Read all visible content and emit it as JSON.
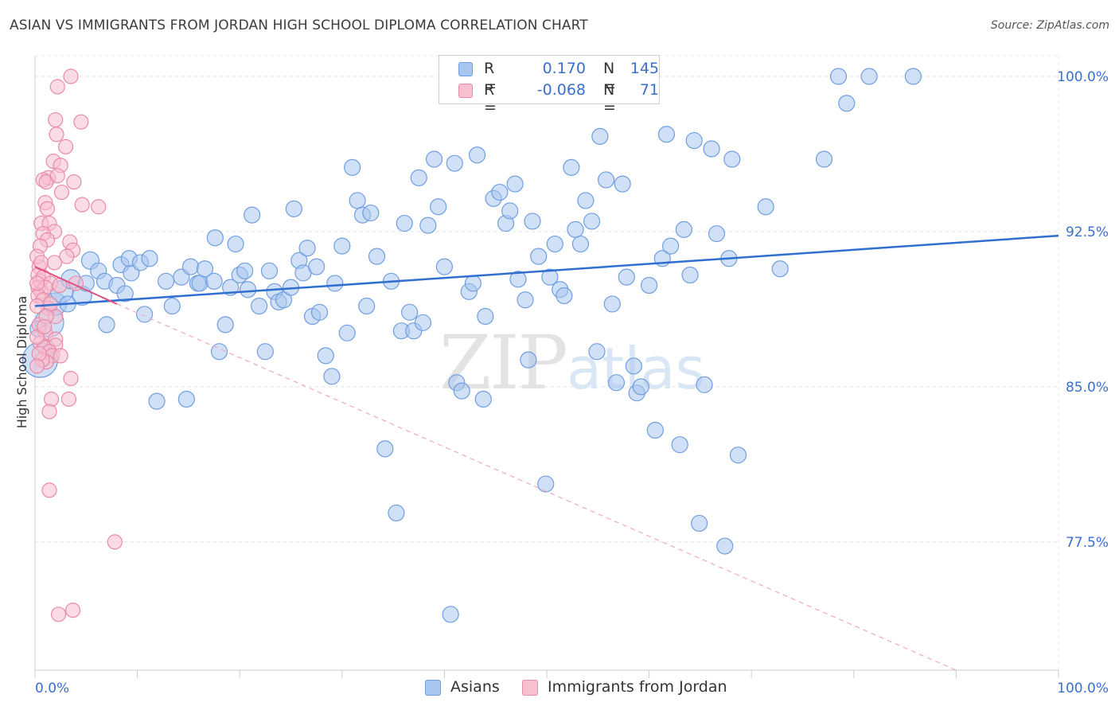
{
  "title": "ASIAN VS IMMIGRANTS FROM JORDAN HIGH SCHOOL DIPLOMA CORRELATION CHART",
  "source": "Source: ZipAtlas.com",
  "watermark": {
    "zip": "ZIP",
    "atlas": "atlas"
  },
  "legend": {
    "r_label": "R =",
    "n_label": "N =",
    "rows": [
      {
        "r": "0.170",
        "n": "145",
        "color": "#a9c6f0",
        "border": "#6f9ee0"
      },
      {
        "r": "-0.068",
        "n": "71",
        "color": "#f7c0d0",
        "border": "#e98aa8"
      }
    ]
  },
  "bottom_legend": [
    "Asians",
    "Immigrants from Jordan"
  ],
  "chart_data": {
    "type": "scatter",
    "title": "ASIAN VS IMMIGRANTS FROM JORDAN HIGH SCHOOL DIPLOMA CORRELATION CHART",
    "xlabel": "",
    "ylabel": "High School Diploma",
    "xlim": [
      0,
      100
    ],
    "ylim": [
      71.3,
      101.0
    ],
    "x_tick_labels": [
      "0.0%",
      "100.0%"
    ],
    "y_ticks": [
      77.5,
      85.0,
      92.5,
      100.0
    ],
    "y_tick_labels": [
      "77.5%",
      "85.0%",
      "92.5%",
      "100.0%"
    ],
    "grid": true,
    "legend_position": "top-center",
    "series": [
      {
        "name": "Asians",
        "color": "#a9c6f0",
        "stroke": "#6f9ee0",
        "trend": {
          "x": [
            0,
            100
          ],
          "y": [
            88.9,
            92.3
          ],
          "color": "#2f6fd0",
          "style": "solid"
        },
        "points": [
          [
            0.5,
            86.3,
            22
          ],
          [
            1.4,
            88.1,
            18
          ],
          [
            2.0,
            89.0,
            14
          ],
          [
            2.6,
            89.6,
            14
          ],
          [
            3.5,
            90.2,
            12
          ],
          [
            4.6,
            89.4,
            12
          ],
          [
            5.4,
            91.1,
            11
          ],
          [
            6.2,
            90.6,
            10
          ],
          [
            6.8,
            90.1,
            10
          ],
          [
            7.0,
            88.0,
            10
          ],
          [
            8.0,
            89.9,
            10
          ],
          [
            8.8,
            89.5,
            10
          ],
          [
            8.4,
            90.9,
            10
          ],
          [
            9.4,
            90.5,
            10
          ],
          [
            9.2,
            91.2,
            10
          ],
          [
            10.3,
            91.0,
            10
          ],
          [
            11.2,
            91.2,
            10
          ],
          [
            10.7,
            88.5,
            10
          ],
          [
            11.9,
            84.3,
            10
          ],
          [
            12.8,
            90.1,
            10
          ],
          [
            13.4,
            88.9,
            10
          ],
          [
            14.3,
            90.3,
            10
          ],
          [
            14.8,
            84.4,
            10
          ],
          [
            15.2,
            90.8,
            10
          ],
          [
            15.9,
            90.0,
            10
          ],
          [
            16.1,
            90.0,
            10
          ],
          [
            16.6,
            90.7,
            10
          ],
          [
            17.5,
            90.1,
            10
          ],
          [
            17.6,
            92.2,
            10
          ],
          [
            18.0,
            86.7,
            10
          ],
          [
            18.6,
            88.0,
            10
          ],
          [
            19.1,
            89.8,
            10
          ],
          [
            19.6,
            91.9,
            10
          ],
          [
            20.0,
            90.4,
            10
          ],
          [
            20.5,
            90.6,
            10
          ],
          [
            20.8,
            89.7,
            10
          ],
          [
            21.2,
            93.3,
            10
          ],
          [
            21.9,
            88.9,
            10
          ],
          [
            22.5,
            86.7,
            10
          ],
          [
            22.9,
            90.6,
            10
          ],
          [
            23.4,
            89.6,
            10
          ],
          [
            23.8,
            89.1,
            10
          ],
          [
            24.3,
            89.2,
            10
          ],
          [
            25.0,
            89.8,
            10
          ],
          [
            25.3,
            93.6,
            10
          ],
          [
            25.8,
            91.1,
            10
          ],
          [
            26.2,
            90.5,
            10
          ],
          [
            26.6,
            91.7,
            10
          ],
          [
            27.1,
            88.4,
            10
          ],
          [
            27.5,
            90.8,
            10
          ],
          [
            27.8,
            88.6,
            10
          ],
          [
            28.4,
            86.5,
            10
          ],
          [
            29.0,
            85.5,
            10
          ],
          [
            29.3,
            90.0,
            10
          ],
          [
            30.0,
            91.8,
            10
          ],
          [
            30.5,
            87.6,
            10
          ],
          [
            31.0,
            95.6,
            10
          ],
          [
            31.5,
            94.0,
            10
          ],
          [
            32.0,
            93.3,
            10
          ],
          [
            32.4,
            88.9,
            10
          ],
          [
            32.8,
            93.4,
            10
          ],
          [
            33.4,
            91.3,
            10
          ],
          [
            34.2,
            82.0,
            10
          ],
          [
            34.8,
            90.1,
            10
          ],
          [
            35.3,
            78.9,
            10
          ],
          [
            35.8,
            87.7,
            10
          ],
          [
            36.1,
            92.9,
            10
          ],
          [
            36.6,
            88.6,
            10
          ],
          [
            37.0,
            87.7,
            10
          ],
          [
            37.5,
            95.1,
            10
          ],
          [
            37.9,
            88.1,
            10
          ],
          [
            38.4,
            92.8,
            10
          ],
          [
            39.0,
            96.0,
            10
          ],
          [
            39.4,
            93.7,
            10
          ],
          [
            40.0,
            90.8,
            10
          ],
          [
            40.6,
            74.0,
            10
          ],
          [
            41.0,
            95.8,
            10
          ],
          [
            41.2,
            85.2,
            10
          ],
          [
            41.7,
            84.8,
            10
          ],
          [
            42.4,
            89.6,
            10
          ],
          [
            42.8,
            90.0,
            10
          ],
          [
            43.2,
            96.2,
            10
          ],
          [
            43.8,
            84.4,
            10
          ],
          [
            44.0,
            88.4,
            10
          ],
          [
            44.8,
            94.1,
            10
          ],
          [
            45.4,
            94.4,
            10
          ],
          [
            46.0,
            92.9,
            10
          ],
          [
            46.4,
            93.5,
            10
          ],
          [
            46.9,
            94.8,
            10
          ],
          [
            47.2,
            90.2,
            10
          ],
          [
            47.9,
            89.2,
            10
          ],
          [
            48.2,
            86.3,
            10
          ],
          [
            48.6,
            93.0,
            10
          ],
          [
            49.2,
            91.3,
            10
          ],
          [
            49.9,
            80.3,
            10
          ],
          [
            50.3,
            90.3,
            10
          ],
          [
            50.8,
            91.9,
            10
          ],
          [
            51.3,
            89.7,
            10
          ],
          [
            51.7,
            89.4,
            10
          ],
          [
            52.4,
            95.6,
            10
          ],
          [
            52.8,
            92.6,
            10
          ],
          [
            53.3,
            91.9,
            10
          ],
          [
            53.8,
            94.0,
            10
          ],
          [
            54.4,
            93.0,
            10
          ],
          [
            54.9,
            86.7,
            10
          ],
          [
            55.2,
            97.1,
            10
          ],
          [
            55.8,
            95.0,
            10
          ],
          [
            56.4,
            89.0,
            10
          ],
          [
            56.8,
            85.2,
            10
          ],
          [
            57.4,
            94.8,
            10
          ],
          [
            57.8,
            90.3,
            10
          ],
          [
            58.5,
            86.0,
            10
          ],
          [
            58.8,
            84.7,
            10
          ],
          [
            59.2,
            85.0,
            10
          ],
          [
            60.0,
            89.9,
            10
          ],
          [
            60.6,
            82.9,
            10
          ],
          [
            61.3,
            91.2,
            10
          ],
          [
            61.7,
            97.2,
            10
          ],
          [
            62.1,
            91.8,
            10
          ],
          [
            63.0,
            82.2,
            10
          ],
          [
            63.4,
            92.6,
            10
          ],
          [
            64.0,
            90.4,
            10
          ],
          [
            64.4,
            96.9,
            10
          ],
          [
            64.9,
            78.4,
            10
          ],
          [
            65.4,
            85.1,
            10
          ],
          [
            66.1,
            96.5,
            10
          ],
          [
            66.6,
            92.4,
            10
          ],
          [
            67.4,
            77.3,
            10
          ],
          [
            67.8,
            91.2,
            10
          ],
          [
            68.1,
            96.0,
            10
          ],
          [
            68.7,
            81.7,
            10
          ],
          [
            71.4,
            93.7,
            10
          ],
          [
            72.8,
            90.7,
            10
          ],
          [
            77.1,
            96.0,
            10
          ],
          [
            78.5,
            100.0,
            10
          ],
          [
            79.3,
            98.7,
            10
          ],
          [
            81.5,
            100.0,
            10
          ],
          [
            85.8,
            100.0,
            10
          ],
          [
            0.3,
            87.8,
            10
          ],
          [
            1.1,
            86.9,
            10
          ],
          [
            3.2,
            89.0,
            10
          ],
          [
            5.0,
            90.0,
            10
          ]
        ]
      },
      {
        "name": "Immigrants from Jordan",
        "color": "#f7c0d0",
        "stroke": "#e98aa8",
        "trend_solid": {
          "x": [
            0,
            8
          ],
          "y": [
            90.8,
            89.0
          ],
          "color": "#e0507e",
          "style": "solid"
        },
        "trend_dashed": {
          "x": [
            8,
            90
          ],
          "y": [
            89.0,
            71.3
          ],
          "color": "#eeaac0",
          "style": "dashed"
        },
        "points": [
          [
            3.5,
            100.0,
            9
          ],
          [
            2.2,
            99.5,
            9
          ],
          [
            4.5,
            97.8,
            9
          ],
          [
            2.0,
            97.9,
            9
          ],
          [
            2.1,
            97.2,
            9
          ],
          [
            3.0,
            96.6,
            9
          ],
          [
            1.8,
            95.9,
            9
          ],
          [
            2.5,
            95.7,
            9
          ],
          [
            1.3,
            95.1,
            9
          ],
          [
            0.8,
            95.0,
            9
          ],
          [
            1.1,
            94.9,
            9
          ],
          [
            3.8,
            94.9,
            9
          ],
          [
            2.2,
            95.2,
            9
          ],
          [
            2.6,
            94.4,
            9
          ],
          [
            4.6,
            93.8,
            9
          ],
          [
            6.2,
            93.7,
            9
          ],
          [
            1.0,
            93.9,
            9
          ],
          [
            1.2,
            93.6,
            9
          ],
          [
            0.6,
            92.9,
            9
          ],
          [
            1.4,
            92.9,
            9
          ],
          [
            1.9,
            92.5,
            9
          ],
          [
            0.8,
            92.4,
            9
          ],
          [
            1.2,
            92.1,
            9
          ],
          [
            3.4,
            92.0,
            9
          ],
          [
            0.5,
            91.8,
            9
          ],
          [
            3.7,
            91.6,
            9
          ],
          [
            3.1,
            91.3,
            9
          ],
          [
            0.4,
            90.8,
            9
          ],
          [
            0.3,
            90.4,
            9
          ],
          [
            0.5,
            90.1,
            9
          ],
          [
            0.8,
            90.3,
            9
          ],
          [
            1.5,
            90.0,
            9
          ],
          [
            0.3,
            89.8,
            9
          ],
          [
            0.6,
            89.6,
            9
          ],
          [
            1.0,
            89.8,
            9
          ],
          [
            0.3,
            89.4,
            9
          ],
          [
            0.8,
            89.2,
            9
          ],
          [
            1.3,
            88.8,
            9
          ],
          [
            2.0,
            88.4,
            9
          ],
          [
            0.4,
            88.0,
            9
          ],
          [
            1.0,
            87.6,
            9
          ],
          [
            2.0,
            87.3,
            9
          ],
          [
            0.5,
            87.1,
            9
          ],
          [
            2.0,
            87.0,
            9
          ],
          [
            0.9,
            86.9,
            9
          ],
          [
            1.4,
            86.7,
            9
          ],
          [
            1.7,
            86.5,
            9
          ],
          [
            2.5,
            86.5,
            9
          ],
          [
            1.1,
            86.2,
            9
          ],
          [
            0.7,
            86.3,
            9
          ],
          [
            0.4,
            86.6,
            9
          ],
          [
            0.2,
            87.4,
            9
          ],
          [
            3.5,
            85.4,
            9
          ],
          [
            1.6,
            84.4,
            9
          ],
          [
            3.3,
            84.4,
            9
          ],
          [
            1.4,
            83.8,
            9
          ],
          [
            1.4,
            80.0,
            9
          ],
          [
            7.8,
            77.5,
            9
          ],
          [
            2.3,
            74.0,
            9
          ],
          [
            3.7,
            74.2,
            9
          ],
          [
            0.2,
            86.0,
            9
          ],
          [
            0.2,
            88.9,
            9
          ],
          [
            0.2,
            90.0,
            9
          ],
          [
            0.2,
            91.3,
            9
          ],
          [
            0.6,
            91.0,
            9
          ],
          [
            1.5,
            89.0,
            9
          ],
          [
            2.4,
            89.9,
            9
          ],
          [
            4.0,
            90.0,
            9
          ],
          [
            1.1,
            88.4,
            9
          ],
          [
            0.9,
            87.9,
            9
          ],
          [
            1.9,
            91.0,
            9
          ]
        ]
      }
    ]
  }
}
